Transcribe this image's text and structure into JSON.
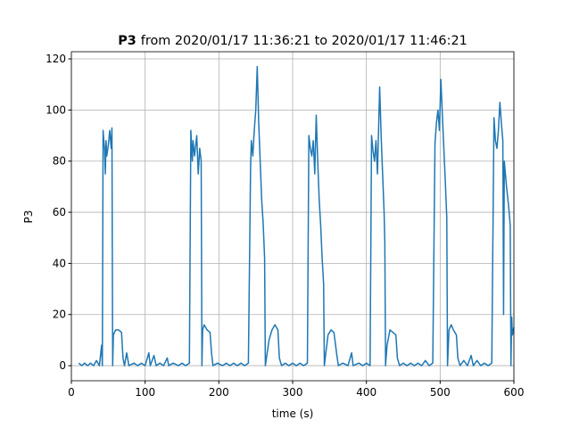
{
  "chart_data": {
    "type": "line",
    "title": "P3",
    "subtitle": "from 2020/01/17 11:36:21 to 2020/01/17 11:46:21",
    "x_label": "time (s)",
    "y_label": "P3",
    "xlim": [
      0,
      600
    ],
    "ylim": [
      -5.9,
      122.8
    ],
    "xticks": [
      0,
      100,
      200,
      300,
      400,
      500,
      600
    ],
    "yticks": [
      0,
      20,
      40,
      60,
      80,
      100,
      120
    ],
    "grid": true,
    "x": [
      10,
      14,
      18,
      22,
      26,
      30,
      34,
      38,
      41,
      42,
      43,
      44,
      45,
      46,
      47,
      48,
      50,
      52,
      54,
      55,
      56,
      57,
      60,
      64,
      68,
      70,
      72,
      75,
      78,
      85,
      90,
      95,
      100,
      105,
      107,
      112,
      115,
      120,
      125,
      130,
      132,
      138,
      145,
      150,
      155,
      160,
      162,
      164,
      165,
      167,
      170,
      172,
      174,
      176,
      177,
      178,
      180,
      184,
      188,
      190,
      192,
      198,
      205,
      210,
      215,
      220,
      225,
      230,
      235,
      240,
      243,
      244,
      246,
      248,
      250,
      252,
      254,
      256,
      258,
      260,
      262,
      263,
      265,
      268,
      272,
      276,
      280,
      282,
      285,
      290,
      295,
      300,
      305,
      310,
      315,
      320,
      322,
      324,
      326,
      328,
      330,
      332,
      334,
      336,
      338,
      340,
      342,
      343,
      345,
      348,
      352,
      356,
      360,
      362,
      368,
      375,
      380,
      382,
      390,
      395,
      400,
      405,
      407,
      409,
      411,
      413,
      415,
      418,
      420,
      422,
      424,
      425,
      426,
      428,
      432,
      436,
      440,
      442,
      445,
      450,
      455,
      460,
      465,
      470,
      475,
      480,
      485,
      490,
      493,
      495,
      497,
      499,
      501,
      503,
      505,
      507,
      509,
      510,
      512,
      515,
      518,
      522,
      524,
      527,
      532,
      537,
      542,
      545,
      550,
      555,
      560,
      565,
      570,
      573,
      575,
      577,
      579,
      581,
      583,
      585,
      586,
      587,
      590,
      593,
      595,
      596,
      597,
      598,
      600
    ],
    "series": [
      {
        "name": "P3",
        "color": "#1f77b4",
        "values": [
          1,
          0,
          1,
          0,
          1,
          0,
          2,
          0,
          8,
          0,
          92,
          88,
          85,
          75,
          88,
          82,
          86,
          92,
          85,
          93,
          0,
          12,
          14,
          14,
          13,
          3,
          0,
          5,
          0,
          1,
          0,
          1,
          0,
          5,
          0,
          4,
          0,
          1,
          0,
          3,
          0,
          1,
          0,
          1,
          0,
          1,
          92,
          80,
          88,
          82,
          90,
          75,
          85,
          80,
          0,
          14,
          16,
          14,
          13,
          5,
          0,
          1,
          0,
          1,
          0,
          1,
          0,
          1,
          0,
          1,
          78,
          88,
          82,
          92,
          100,
          117,
          95,
          80,
          65,
          56,
          42,
          0,
          4,
          10,
          14,
          16,
          14,
          3,
          0,
          1,
          0,
          1,
          0,
          1,
          0,
          1,
          90,
          85,
          82,
          88,
          75,
          98,
          80,
          65,
          55,
          42,
          32,
          0,
          5,
          12,
          14,
          13,
          4,
          0,
          1,
          0,
          5,
          0,
          1,
          0,
          1,
          0,
          90,
          84,
          80,
          88,
          75,
          109,
          90,
          75,
          60,
          48,
          0,
          8,
          14,
          13,
          12,
          3,
          0,
          1,
          0,
          1,
          0,
          1,
          0,
          2,
          0,
          1,
          87,
          95,
          100,
          92,
          112,
          98,
          85,
          72,
          58,
          0,
          14,
          16,
          14,
          12,
          3,
          0,
          2,
          0,
          4,
          0,
          2,
          0,
          1,
          0,
          1,
          97,
          88,
          85,
          92,
          103,
          95,
          88,
          20,
          80,
          70,
          62,
          55,
          0,
          19,
          12,
          15
        ]
      }
    ]
  }
}
